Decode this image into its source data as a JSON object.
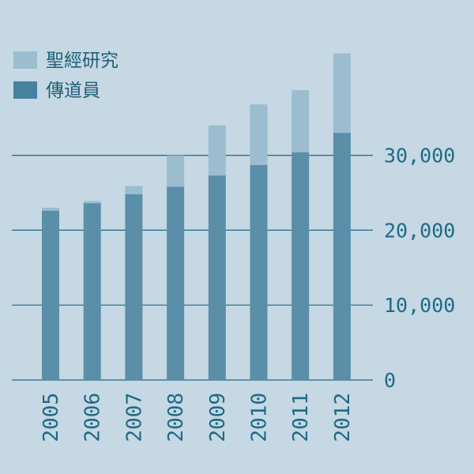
{
  "colors": {
    "background": "#c5d8e3",
    "bible_studies": "#9bbdcf",
    "publishers": "#5a8ea9",
    "legend_publishers": "#4682a0",
    "gridline": "#1f6a86",
    "text": "#1f6a86"
  },
  "chart_data": {
    "type": "bar",
    "stacked": true,
    "categories": [
      "2005",
      "2006",
      "2007",
      "2008",
      "2009",
      "2010",
      "2011",
      "2012"
    ],
    "series": [
      {
        "name": "傳道員",
        "values": [
          22600,
          23600,
          24800,
          25800,
          27300,
          28700,
          30400,
          33000
        ]
      },
      {
        "name": "聖經研究",
        "values": [
          400,
          300,
          1100,
          4200,
          6700,
          8100,
          8300,
          10600
        ]
      }
    ],
    "ylim": [
      0,
      44000
    ],
    "yticks": [
      0,
      10000,
      20000,
      30000
    ],
    "ytick_labels": [
      "0",
      "10,000",
      "20,000",
      "30,000"
    ],
    "grid": true,
    "legend_position": "top-left",
    "axis_side": "right"
  }
}
